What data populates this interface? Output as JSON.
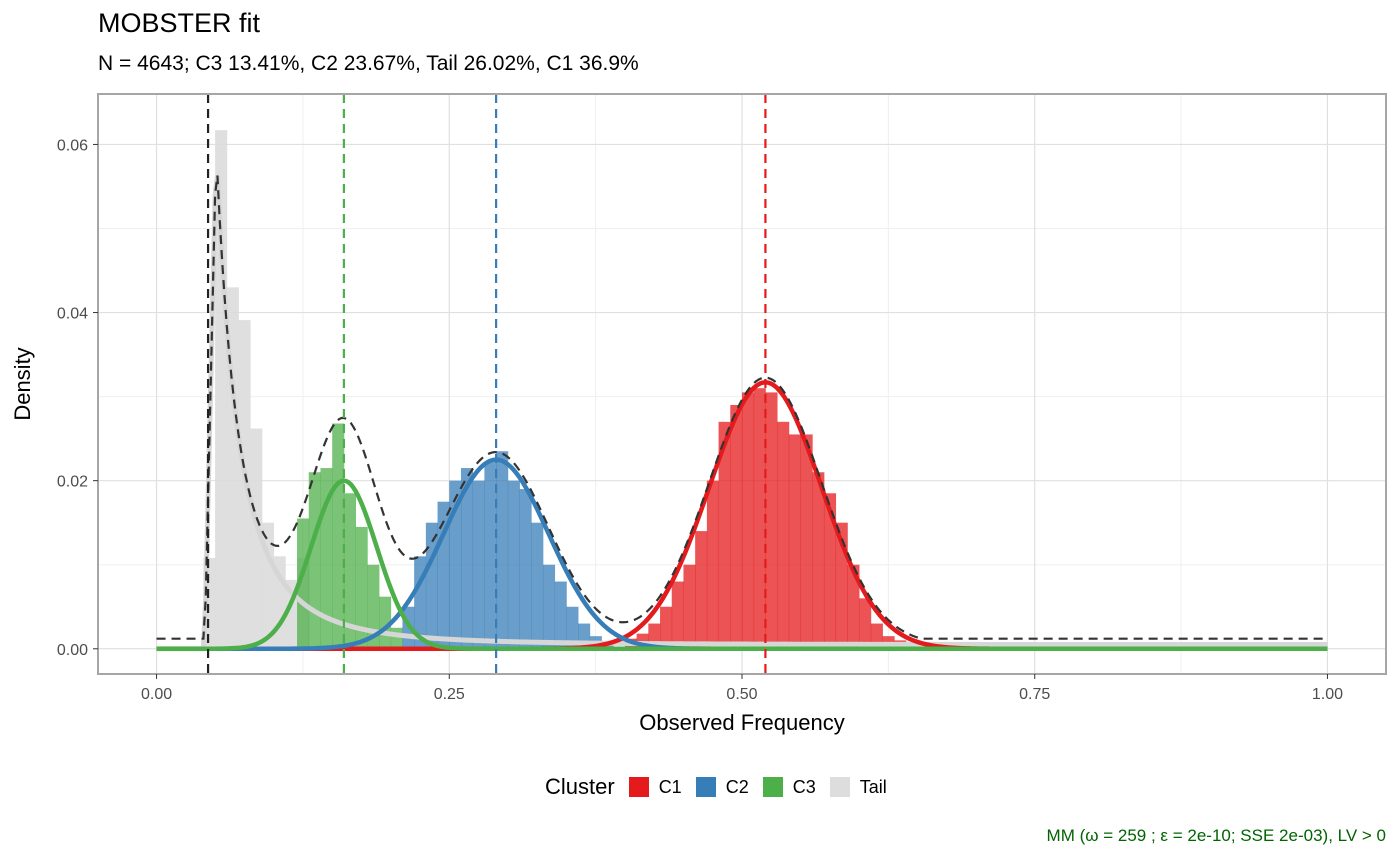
{
  "title": "MOBSTER fit",
  "subtitle": "N = 4643; C3 13.41%, C2 23.67%, Tail 26.02%, C1 36.9%",
  "caption": "MM (ω = 259 ; ε = 2e-10; SSE 2e-03), LV > 0",
  "legend": {
    "title": "Cluster",
    "items": [
      {
        "label": "C1",
        "color": "#e41a1c"
      },
      {
        "label": "C2",
        "color": "#377eb8"
      },
      {
        "label": "C3",
        "color": "#4daf4a"
      },
      {
        "label": "Tail",
        "color": "#dddddd"
      }
    ]
  },
  "chart_data": {
    "type": "histogram",
    "title": "MOBSTER fit",
    "xlabel": "Observed Frequency",
    "ylabel": "Density",
    "xlim": [
      -0.05,
      1.05
    ],
    "ylim": [
      -0.003,
      0.066
    ],
    "x_ticks": [
      0.0,
      0.25,
      0.5,
      0.75,
      1.0
    ],
    "x_tick_labels": [
      "0.00",
      "0.25",
      "0.50",
      "0.75",
      "1.00"
    ],
    "y_ticks": [
      0.0,
      0.02,
      0.04,
      0.06
    ],
    "y_tick_labels": [
      "0.00",
      "0.02",
      "0.04",
      "0.06"
    ],
    "grid": true,
    "legend_position": "bottom",
    "bin_width": 0.01,
    "bars": {
      "Tail": [
        [
          0.04,
          0.0108
        ],
        [
          0.05,
          0.0617
        ],
        [
          0.06,
          0.043
        ],
        [
          0.07,
          0.0391
        ],
        [
          0.08,
          0.0262
        ],
        [
          0.09,
          0.015
        ],
        [
          0.1,
          0.011
        ],
        [
          0.11,
          0.0082
        ],
        [
          0.12,
          0.0108
        ]
      ],
      "C3": [
        [
          0.12,
          0.0155
        ],
        [
          0.13,
          0.021
        ],
        [
          0.14,
          0.0215
        ],
        [
          0.15,
          0.0268
        ],
        [
          0.16,
          0.0185
        ],
        [
          0.17,
          0.0145
        ],
        [
          0.18,
          0.01
        ],
        [
          0.19,
          0.0062
        ],
        [
          0.2,
          0.0025
        ]
      ],
      "C2": [
        [
          0.21,
          0.005
        ],
        [
          0.22,
          0.011
        ],
        [
          0.23,
          0.015
        ],
        [
          0.24,
          0.0175
        ],
        [
          0.25,
          0.02
        ],
        [
          0.26,
          0.0215
        ],
        [
          0.27,
          0.02
        ],
        [
          0.28,
          0.0222
        ],
        [
          0.29,
          0.0235
        ],
        [
          0.3,
          0.02
        ],
        [
          0.31,
          0.019
        ],
        [
          0.32,
          0.015
        ],
        [
          0.33,
          0.01
        ],
        [
          0.34,
          0.008
        ],
        [
          0.35,
          0.005
        ],
        [
          0.36,
          0.003
        ],
        [
          0.37,
          0.0015
        ],
        [
          0.38,
          0.0008
        ]
      ],
      "C1": [
        [
          0.4,
          0.0012
        ],
        [
          0.41,
          0.0018
        ],
        [
          0.42,
          0.003
        ],
        [
          0.43,
          0.005
        ],
        [
          0.44,
          0.008
        ],
        [
          0.45,
          0.01
        ],
        [
          0.46,
          0.014
        ],
        [
          0.47,
          0.02
        ],
        [
          0.48,
          0.027
        ],
        [
          0.49,
          0.029
        ],
        [
          0.5,
          0.0305
        ],
        [
          0.51,
          0.031
        ],
        [
          0.52,
          0.0305
        ],
        [
          0.53,
          0.027
        ],
        [
          0.54,
          0.0255
        ],
        [
          0.55,
          0.0255
        ],
        [
          0.56,
          0.021
        ],
        [
          0.57,
          0.0185
        ],
        [
          0.58,
          0.015
        ],
        [
          0.59,
          0.01
        ],
        [
          0.6,
          0.006
        ],
        [
          0.61,
          0.003
        ],
        [
          0.62,
          0.0015
        ],
        [
          0.63,
          0.001
        ],
        [
          0.64,
          0.0005
        ],
        [
          0.65,
          0.0005
        ]
      ]
    },
    "component_curves": {
      "C1": {
        "type": "normal",
        "mean": 0.52,
        "sd": 0.048,
        "peak": 0.0317
      },
      "C2": {
        "type": "normal",
        "mean": 0.29,
        "sd": 0.045,
        "peak": 0.0225
      },
      "C3": {
        "type": "normal",
        "mean": 0.16,
        "sd": 0.028,
        "peak": 0.02
      },
      "Tail": {
        "type": "pareto",
        "xmin": 0.045,
        "peak": 0.06,
        "floor": 0.0005
      }
    },
    "mixture_floor": 0.0012,
    "vlines": [
      {
        "name": "Tail",
        "x": 0.044,
        "color": "#222222"
      },
      {
        "name": "C3",
        "x": 0.16,
        "color": "#4daf4a"
      },
      {
        "name": "C2",
        "x": 0.29,
        "color": "#377eb8"
      },
      {
        "name": "C1",
        "x": 0.52,
        "color": "#e41a1c"
      }
    ]
  }
}
